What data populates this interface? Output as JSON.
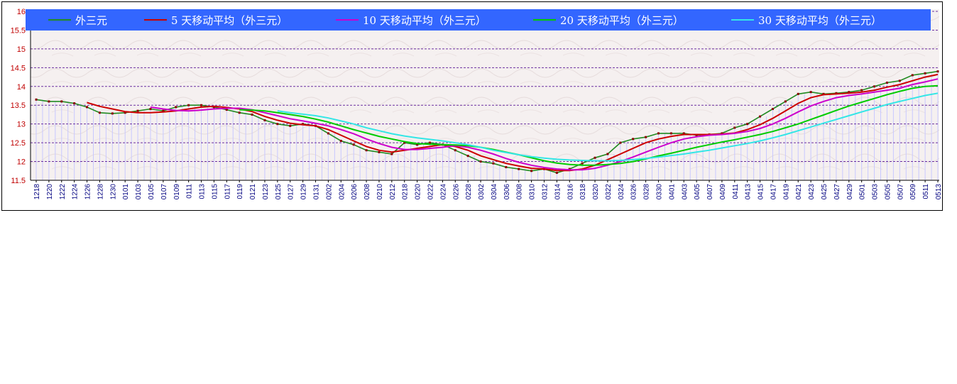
{
  "chart_data": {
    "type": "line",
    "ylim": [
      11.5,
      16
    ],
    "yticks": [
      "11.5",
      "12",
      "12.5",
      "13",
      "13.5",
      "14",
      "14.5",
      "15",
      "15.5",
      "16"
    ],
    "grid": true,
    "legend_position": "top",
    "background": "#f5f0f0",
    "legend_background": "#3366ff",
    "x": [
      "1218",
      "1220",
      "1222",
      "1224",
      "1226",
      "1228",
      "1230",
      "0101",
      "0103",
      "0105",
      "0107",
      "0109",
      "0111",
      "0113",
      "0115",
      "0117",
      "0119",
      "0121",
      "0123",
      "0125",
      "0127",
      "0129",
      "0131",
      "0202",
      "0204",
      "0206",
      "0208",
      "0210",
      "0212",
      "0218",
      "0220",
      "0222",
      "0224",
      "0226",
      "0228",
      "0302",
      "0304",
      "0306",
      "0308",
      "0310",
      "0312",
      "0314",
      "0316",
      "0318",
      "0320",
      "0322",
      "0324",
      "0326",
      "0328",
      "0330",
      "0401",
      "0403",
      "0405",
      "0407",
      "0409",
      "0411",
      "0413",
      "0415",
      "0417",
      "0419",
      "0421",
      "0423",
      "0425",
      "0427",
      "0429",
      "0501",
      "0503",
      "0505",
      "0507",
      "0509",
      "0511",
      "0513"
    ],
    "series": [
      {
        "name": "外三元",
        "color": "#228b22",
        "values": [
          13.65,
          13.6,
          13.6,
          13.55,
          13.45,
          13.3,
          13.28,
          13.3,
          13.35,
          13.4,
          13.35,
          13.45,
          13.5,
          13.5,
          13.45,
          13.38,
          13.3,
          13.25,
          13.1,
          13.0,
          12.95,
          13.0,
          12.95,
          12.75,
          12.55,
          12.45,
          12.3,
          12.25,
          12.2,
          12.5,
          12.45,
          12.5,
          12.45,
          12.3,
          12.15,
          12.0,
          11.95,
          11.85,
          11.8,
          11.75,
          11.8,
          11.7,
          11.8,
          11.95,
          12.1,
          12.2,
          12.5,
          12.6,
          12.65,
          12.75,
          12.75,
          12.75,
          12.7,
          12.72,
          12.75,
          12.9,
          13.0,
          13.2,
          13.4,
          13.6,
          13.8,
          13.85,
          13.8,
          13.82,
          13.85,
          13.9,
          14.0,
          14.1,
          14.15,
          14.3,
          14.35,
          14.4
        ]
      },
      {
        "name": "5 天移动平均（外三元）",
        "color": "#cc0000",
        "values": [
          null,
          null,
          null,
          null,
          13.57,
          13.47,
          13.4,
          13.33,
          13.3,
          13.3,
          13.32,
          13.35,
          13.4,
          13.45,
          13.47,
          13.44,
          13.4,
          13.33,
          13.2,
          13.1,
          13.02,
          12.98,
          12.95,
          12.85,
          12.7,
          12.55,
          12.4,
          12.3,
          12.25,
          12.3,
          12.35,
          12.4,
          12.45,
          12.4,
          12.3,
          12.15,
          12.05,
          11.95,
          11.88,
          11.82,
          11.8,
          11.76,
          11.76,
          11.8,
          11.9,
          12.05,
          12.2,
          12.35,
          12.5,
          12.6,
          12.67,
          12.72,
          12.72,
          12.72,
          12.73,
          12.76,
          12.85,
          12.98,
          13.15,
          13.35,
          13.55,
          13.7,
          13.78,
          13.8,
          13.82,
          13.85,
          13.9,
          13.98,
          14.05,
          14.15,
          14.25,
          14.32
        ]
      },
      {
        "name": "10 天移动平均（外三元）",
        "color": "#cc00cc",
        "values": [
          null,
          null,
          null,
          null,
          null,
          null,
          null,
          null,
          null,
          13.45,
          13.4,
          13.36,
          13.35,
          13.37,
          13.4,
          13.42,
          13.42,
          13.38,
          13.3,
          13.22,
          13.14,
          13.08,
          13.02,
          12.95,
          12.85,
          12.74,
          12.6,
          12.48,
          12.38,
          12.32,
          12.32,
          12.35,
          12.38,
          12.42,
          12.38,
          12.3,
          12.2,
          12.08,
          11.98,
          11.9,
          11.84,
          11.8,
          11.78,
          11.78,
          11.82,
          11.9,
          12.0,
          12.12,
          12.25,
          12.38,
          12.5,
          12.6,
          12.66,
          12.7,
          12.72,
          12.75,
          12.8,
          12.88,
          13.0,
          13.15,
          13.32,
          13.48,
          13.6,
          13.7,
          13.76,
          13.8,
          13.85,
          13.9,
          13.95,
          14.05,
          14.12,
          14.2
        ]
      },
      {
        "name": "20 天移动平均（外三元）",
        "color": "#00cc00",
        "values": [
          null,
          null,
          null,
          null,
          null,
          null,
          null,
          null,
          null,
          null,
          null,
          null,
          null,
          null,
          null,
          null,
          13.38,
          13.37,
          13.35,
          13.3,
          13.25,
          13.2,
          13.13,
          13.05,
          12.95,
          12.85,
          12.76,
          12.67,
          12.6,
          12.53,
          12.48,
          12.46,
          12.45,
          12.44,
          12.42,
          12.38,
          12.32,
          12.25,
          12.18,
          12.1,
          12.02,
          11.96,
          11.92,
          11.9,
          11.9,
          11.92,
          11.95,
          12.0,
          12.07,
          12.15,
          12.22,
          12.3,
          12.38,
          12.45,
          12.52,
          12.58,
          12.65,
          12.72,
          12.8,
          12.9,
          13.0,
          13.12,
          13.24,
          13.36,
          13.48,
          13.58,
          13.68,
          13.78,
          13.87,
          13.95,
          14.0,
          14.02
        ]
      },
      {
        "name": "30 天移动平均（外三元）",
        "color": "#33e6e6",
        "values": [
          null,
          null,
          null,
          null,
          null,
          null,
          null,
          null,
          null,
          null,
          null,
          null,
          null,
          null,
          null,
          null,
          null,
          null,
          null,
          13.35,
          13.3,
          13.26,
          13.22,
          13.16,
          13.08,
          13.0,
          12.9,
          12.82,
          12.74,
          12.68,
          12.63,
          12.59,
          12.55,
          12.5,
          12.45,
          12.38,
          12.3,
          12.24,
          12.18,
          12.13,
          12.09,
          12.06,
          12.04,
          12.03,
          12.02,
          12.02,
          12.03,
          12.05,
          12.08,
          12.12,
          12.16,
          12.2,
          12.25,
          12.3,
          12.36,
          12.42,
          12.48,
          12.55,
          12.63,
          12.72,
          12.82,
          12.92,
          13.02,
          13.12,
          13.22,
          13.32,
          13.42,
          13.52,
          13.6,
          13.68,
          13.76,
          13.82
        ]
      }
    ]
  }
}
